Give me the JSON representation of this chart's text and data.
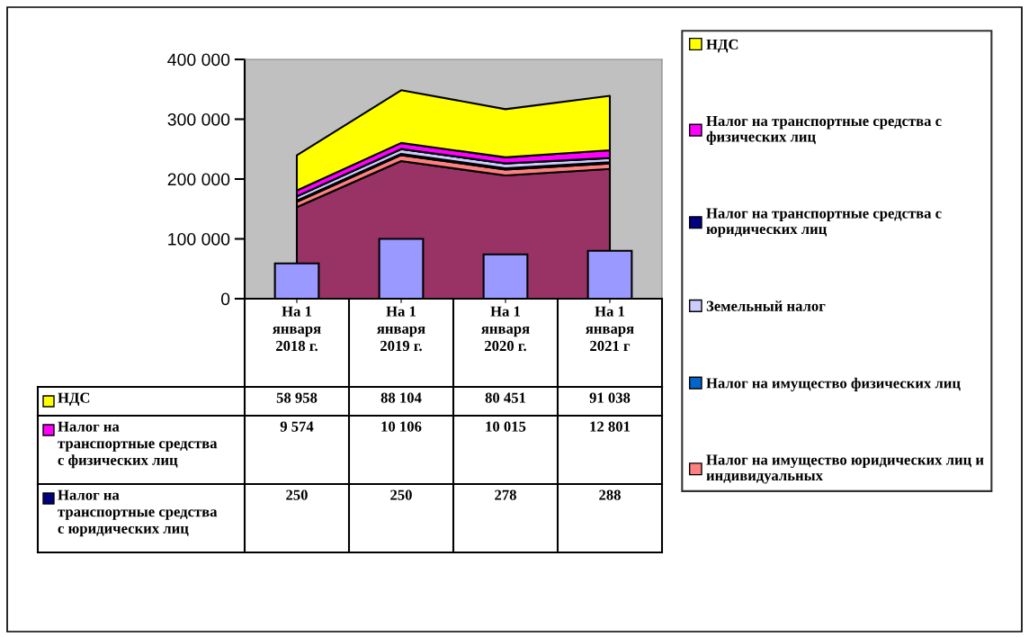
{
  "chart_data": [
    {
      "type": "area",
      "stacked": true,
      "categories": [
        "На 1 января 2018 г.",
        "На 1 января 2019 г.",
        "На 1 января 2020 г.",
        "На 1 января 2021 г"
      ],
      "series": [
        {
          "color": "#993366",
          "values": [
            153000,
            230000,
            206000,
            217000
          ]
        },
        {
          "name": "Налог на имущество юридических лиц и индивидуальных",
          "color": "#ff8080",
          "values": [
            9000,
            10000,
            10000,
            9000
          ]
        },
        {
          "name": "Налог на имущество физических лиц",
          "color": "#0066cc",
          "values": [
            2000,
            2000,
            2000,
            2000
          ]
        },
        {
          "name": "Земельный налог",
          "color": "#ccccff",
          "values": [
            7000,
            8000,
            8000,
            7000
          ]
        },
        {
          "name": "Налог на транспортные средства с юридических лиц",
          "color": "#000080",
          "values": [
            250,
            250,
            278,
            288
          ],
          "value_labels": [
            "250",
            "250",
            "278",
            "288"
          ]
        },
        {
          "name": "Налог на транспортные средства с физических лиц",
          "color": "#ff00ff",
          "values": [
            9574,
            10106,
            10015,
            12801
          ],
          "value_labels": [
            "9 574",
            "10 106",
            "10 015",
            "12 801"
          ]
        },
        {
          "name": "НДС",
          "color": "#ffff00",
          "values": [
            58958,
            88104,
            80451,
            91038
          ],
          "value_labels": [
            "58 958",
            "88 104",
            "80 451",
            "91 038"
          ]
        }
      ],
      "ylim": [
        0,
        400000
      ],
      "yticks": [
        {
          "value": 0,
          "label": "0"
        },
        {
          "value": 100000,
          "label": "100 000"
        },
        {
          "value": 200000,
          "label": "200 000"
        },
        {
          "value": 300000,
          "label": "300 000"
        },
        {
          "value": 400000,
          "label": "400 000"
        }
      ],
      "tick_labels": "y",
      "legend": "right",
      "grid": false
    },
    {
      "type": "bar",
      "categories": [
        null,
        null,
        null,
        null
      ],
      "series": [
        {
          "color": "#9999ff",
          "values": [
            59000,
            100000,
            74000,
            80000
          ]
        }
      ],
      "ylim": [
        0,
        400000
      ],
      "tick_labels": false
    }
  ]
}
